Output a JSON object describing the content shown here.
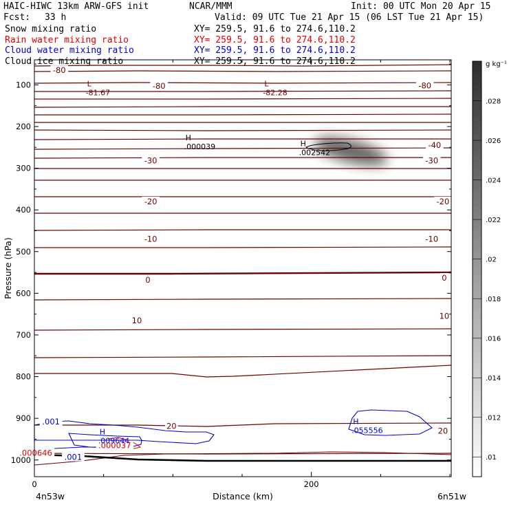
{
  "header": {
    "model": "HAIC-HIWC 13km ARW-GFS init",
    "org": "NCAR/MMM",
    "init": "Init: 00 UTC Mon 20 Apr 15",
    "fcst_label": "Fcst:",
    "fcst_value": "33 h",
    "valid": "Valid: 09 UTC Tue 21 Apr 15 (06 LST Tue 21 Apr 15)",
    "fields": [
      {
        "name": "Snow mixing ratio",
        "color": "#000000",
        "xy": "XY= 259.5, 91.6 to 274.6,110.2"
      },
      {
        "name": "Rain water mixing ratio",
        "color": "#e00000",
        "xy": "XY= 259.5, 91.6 to 274.6,110.2"
      },
      {
        "name": "Cloud water mixing ratio",
        "color": "#0000d0",
        "xy": "XY= 259.5, 91.6 to 274.6,110.2"
      },
      {
        "name": "Cloud ice mixing ratio",
        "color": "#000000",
        "xy": "XY= 259.5, 91.6 to 274.6,110.2"
      }
    ]
  },
  "chart_data": {
    "type": "contour",
    "xlabel": "Distance (km)",
    "ylabel": "Pressure (hPa)",
    "x_ticks": [
      0,
      200
    ],
    "x_range": [
      0,
      301
    ],
    "x_end_labels": {
      "left": "4n53w",
      "right": "6n51w"
    },
    "y_ticks": [
      100,
      200,
      300,
      400,
      500,
      600,
      700,
      800,
      900,
      1000
    ],
    "y_range": [
      40,
      1040
    ],
    "colorbar": {
      "unit": "g kg⁻¹",
      "ticks": [
        ".01",
        ".012",
        ".014",
        ".016",
        ".018",
        ".02",
        ".022",
        ".024",
        ".026",
        ".028"
      ],
      "range": [
        0.009,
        0.03
      ]
    },
    "temperature_labels": [
      {
        "text": "-80",
        "x": 18,
        "p": 65
      },
      {
        "text": "-80",
        "x": 90,
        "p": 103
      },
      {
        "text": "-80",
        "x": 282,
        "p": 102
      },
      {
        "text": "-40",
        "x": 289,
        "p": 245
      },
      {
        "text": "-30",
        "x": 84,
        "p": 282
      },
      {
        "text": "-30",
        "x": 287,
        "p": 282
      },
      {
        "text": "-20",
        "x": 84,
        "p": 380
      },
      {
        "text": "-20",
        "x": 295,
        "p": 380
      },
      {
        "text": "-10",
        "x": 84,
        "p": 470
      },
      {
        "text": "-10",
        "x": 287,
        "p": 470
      },
      {
        "text": "0",
        "x": 82,
        "p": 568
      },
      {
        "text": "0",
        "x": 296,
        "p": 563
      },
      {
        "text": "10",
        "x": 74,
        "p": 665
      },
      {
        "text": "10",
        "x": 296,
        "p": 655
      },
      {
        "text": "20",
        "x": 99,
        "p": 919
      },
      {
        "text": "20",
        "x": 295,
        "p": 930
      }
    ],
    "extrema": [
      {
        "type": "L",
        "value": "-81.67",
        "x": 48,
        "p": 110,
        "color": "#6b0000"
      },
      {
        "type": "L",
        "value": "-82.28",
        "x": 176,
        "p": 110,
        "color": "#6b0000"
      },
      {
        "type": "H",
        "value": ".000039",
        "x": 119,
        "p": 240,
        "color": "#000000"
      },
      {
        "type": "H",
        "value": ".002542",
        "x": 202,
        "p": 254,
        "color": "#000000"
      },
      {
        "type": "H",
        "value": ".009644",
        "x": 57,
        "p": 945,
        "color": "#0000d0"
      },
      {
        "type": "H",
        "value": ".055556",
        "x": 240,
        "p": 920,
        "color": "#0000d0"
      }
    ],
    "other_labels": [
      {
        "text": ".001",
        "x": 12,
        "p": 908,
        "color": "#0000d0"
      },
      {
        "text": ".001",
        "x": 28,
        "p": 993,
        "color": "#0000d0"
      },
      {
        "text": ".000646",
        "x": 1,
        "p": 983,
        "color": "#e00000"
      },
      {
        "text": ".000037",
        "x": 58,
        "p": 965,
        "color": "#e00000"
      }
    ]
  }
}
